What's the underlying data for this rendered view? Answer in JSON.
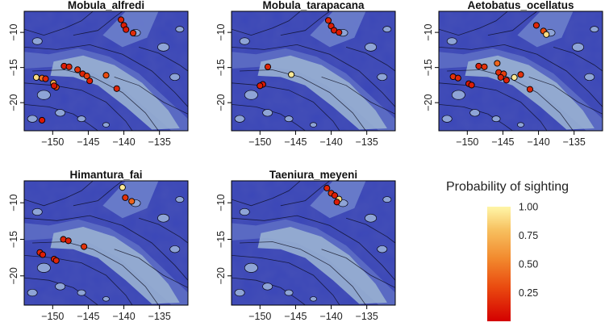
{
  "chart_data": [
    {
      "type": "scatter",
      "title": "Mobula_alfredi",
      "x_ticks": [
        -150,
        -145,
        -140,
        -135
      ],
      "y_ticks": [
        -10,
        -15,
        -20
      ],
      "points": [
        {
          "x": -140.4,
          "y": -8.2,
          "p": 0.15
        },
        {
          "x": -140.0,
          "y": -9.0,
          "p": 0.12
        },
        {
          "x": -139.7,
          "y": -9.6,
          "p": 0.1
        },
        {
          "x": -138.7,
          "y": -10.1,
          "p": 0.18
        },
        {
          "x": -152.3,
          "y": -16.4,
          "p": 0.9
        },
        {
          "x": -151.5,
          "y": -16.5,
          "p": 0.45
        },
        {
          "x": -151.0,
          "y": -16.6,
          "p": 0.15
        },
        {
          "x": -149.9,
          "y": -17.2,
          "p": 0.7
        },
        {
          "x": -149.5,
          "y": -17.8,
          "p": 0.25
        },
        {
          "x": -149.8,
          "y": -17.6,
          "p": 0.1
        },
        {
          "x": -148.4,
          "y": -14.8,
          "p": 0.12
        },
        {
          "x": -147.7,
          "y": -14.9,
          "p": 0.15
        },
        {
          "x": -146.5,
          "y": -15.3,
          "p": 0.2
        },
        {
          "x": -145.8,
          "y": -15.9,
          "p": 0.15
        },
        {
          "x": -145.2,
          "y": -16.2,
          "p": 0.25
        },
        {
          "x": -144.8,
          "y": -16.9,
          "p": 0.12
        },
        {
          "x": -142.5,
          "y": -16.1,
          "p": 0.3
        },
        {
          "x": -141.0,
          "y": -18.0,
          "p": 0.15
        },
        {
          "x": -151.5,
          "y": -22.5,
          "p": 0.1
        }
      ]
    },
    {
      "type": "scatter",
      "title": "Mobula_tarapacana",
      "x_ticks": [
        -150,
        -145,
        -140,
        -135
      ],
      "y_ticks": [
        -10,
        -15,
        -20
      ],
      "points": [
        {
          "x": -140.4,
          "y": -8.3,
          "p": 0.15
        },
        {
          "x": -140.0,
          "y": -9.1,
          "p": 0.12
        },
        {
          "x": -139.6,
          "y": -9.7,
          "p": 0.1
        },
        {
          "x": -138.9,
          "y": -10.0,
          "p": 0.1
        },
        {
          "x": -148.9,
          "y": -14.9,
          "p": 0.15
        },
        {
          "x": -145.6,
          "y": -16.0,
          "p": 0.95
        },
        {
          "x": -149.6,
          "y": -17.4,
          "p": 0.1
        },
        {
          "x": -150.0,
          "y": -17.6,
          "p": 0.12
        }
      ]
    },
    {
      "type": "scatter",
      "title": "Aetobatus_ocellatus",
      "x_ticks": [
        -150,
        -145,
        -140,
        -135
      ],
      "y_ticks": [
        -10,
        -15,
        -20
      ],
      "points": [
        {
          "x": -140.3,
          "y": -9.0,
          "p": 0.15
        },
        {
          "x": -139.3,
          "y": -9.8,
          "p": 0.3
        },
        {
          "x": -138.9,
          "y": -10.3,
          "p": 0.9
        },
        {
          "x": -152.0,
          "y": -16.3,
          "p": 0.2
        },
        {
          "x": -151.3,
          "y": -16.5,
          "p": 0.15
        },
        {
          "x": -149.8,
          "y": -17.3,
          "p": 0.1
        },
        {
          "x": -149.4,
          "y": -17.5,
          "p": 0.12
        },
        {
          "x": -148.4,
          "y": -14.8,
          "p": 0.12
        },
        {
          "x": -147.6,
          "y": -14.9,
          "p": 0.2
        },
        {
          "x": -145.8,
          "y": -14.4,
          "p": 0.4
        },
        {
          "x": -145.6,
          "y": -15.7,
          "p": 0.18
        },
        {
          "x": -144.9,
          "y": -15.9,
          "p": 0.25
        },
        {
          "x": -145.3,
          "y": -16.4,
          "p": 0.15
        },
        {
          "x": -144.5,
          "y": -16.8,
          "p": 0.12
        },
        {
          "x": -143.4,
          "y": -16.4,
          "p": 0.95
        },
        {
          "x": -142.5,
          "y": -16.0,
          "p": 0.2
        },
        {
          "x": -141.2,
          "y": -18.1,
          "p": 0.15
        }
      ]
    },
    {
      "type": "scatter",
      "title": "Himantura_fai",
      "x_ticks": [
        -150,
        -145,
        -140,
        -135
      ],
      "y_ticks": [
        -10,
        -15,
        -20
      ],
      "points": [
        {
          "x": -140.2,
          "y": -7.9,
          "p": 0.95
        },
        {
          "x": -139.8,
          "y": -9.3,
          "p": 0.2
        },
        {
          "x": -138.9,
          "y": -9.8,
          "p": 0.4
        },
        {
          "x": -148.5,
          "y": -15.0,
          "p": 0.15
        },
        {
          "x": -147.8,
          "y": -15.2,
          "p": 0.12
        },
        {
          "x": -145.6,
          "y": -16.0,
          "p": 0.2
        },
        {
          "x": -151.8,
          "y": -16.8,
          "p": 0.15
        },
        {
          "x": -151.4,
          "y": -17.1,
          "p": 0.12
        },
        {
          "x": -149.8,
          "y": -17.7,
          "p": 0.12
        },
        {
          "x": -149.5,
          "y": -17.9,
          "p": 0.15
        }
      ]
    },
    {
      "type": "scatter",
      "title": "Taeniura_meyeni",
      "x_ticks": [
        -150,
        -145,
        -140,
        -135
      ],
      "y_ticks": [
        -10,
        -15,
        -20
      ],
      "points": [
        {
          "x": -140.6,
          "y": -8.0,
          "p": 0.15
        },
        {
          "x": -140.0,
          "y": -8.7,
          "p": 0.2
        },
        {
          "x": -139.5,
          "y": -9.0,
          "p": 0.12
        },
        {
          "x": -138.9,
          "y": -9.5,
          "p": 0.9
        },
        {
          "x": -139.2,
          "y": -9.9,
          "p": 0.1
        }
      ]
    }
  ],
  "legend": {
    "title": "Probability of sighting",
    "ticks": [
      "1.00",
      "0.75",
      "0.50",
      "0.25"
    ],
    "tick_values": [
      1.0,
      0.75,
      0.5,
      0.25
    ],
    "range": [
      0.0,
      1.0
    ],
    "colors": {
      "low": "#d40000",
      "mid_low": "#ea4b10",
      "mid": "#f28a2e",
      "mid_high": "#f7c160",
      "high": "#fff6a8"
    }
  },
  "map_colors": {
    "deep": "#3a46b8",
    "shelf": "#98b0d2",
    "contour": "#0a0a1a"
  }
}
